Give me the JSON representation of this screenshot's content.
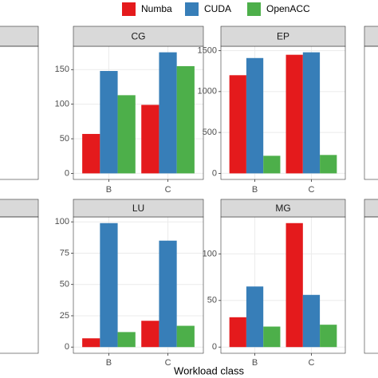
{
  "x_label": "Workload class",
  "chart_data": [
    {
      "type": "bar",
      "title": "CG",
      "categories": [
        "B",
        "C"
      ],
      "series": [
        {
          "name": "Numba",
          "color": "#e41a1c",
          "values": [
            57,
            99
          ]
        },
        {
          "name": "CUDA",
          "color": "#377eb8",
          "values": [
            148,
            175
          ]
        },
        {
          "name": "OpenACC",
          "color": "#4daf4a",
          "values": [
            113,
            155
          ]
        }
      ],
      "ylim": [
        -8.75,
        183.75
      ],
      "yticks": [
        0,
        50,
        100,
        150
      ],
      "grid": true
    },
    {
      "type": "bar",
      "title": "EP",
      "categories": [
        "B",
        "C"
      ],
      "series": [
        {
          "name": "Numba",
          "color": "#e41a1c",
          "values": [
            1200,
            1450
          ]
        },
        {
          "name": "CUDA",
          "color": "#377eb8",
          "values": [
            1410,
            1480
          ]
        },
        {
          "name": "OpenACC",
          "color": "#4daf4a",
          "values": [
            215,
            225
          ]
        }
      ],
      "ylim": [
        -74,
        1554
      ],
      "yticks": [
        0,
        500,
        1000,
        1500
      ],
      "grid": true
    },
    {
      "type": "bar",
      "title": "LU",
      "categories": [
        "B",
        "C"
      ],
      "series": [
        {
          "name": "Numba",
          "color": "#e41a1c",
          "values": [
            7,
            21
          ]
        },
        {
          "name": "CUDA",
          "color": "#377eb8",
          "values": [
            99,
            85
          ]
        },
        {
          "name": "OpenACC",
          "color": "#4daf4a",
          "values": [
            12,
            17
          ]
        }
      ],
      "ylim": [
        -4.95,
        103.95
      ],
      "yticks": [
        0,
        25,
        50,
        75,
        100
      ],
      "grid": true
    },
    {
      "type": "bar",
      "title": "MG",
      "categories": [
        "B",
        "C"
      ],
      "series": [
        {
          "name": "Numba",
          "color": "#e41a1c",
          "values": [
            32,
            133
          ]
        },
        {
          "name": "CUDA",
          "color": "#377eb8",
          "values": [
            65,
            56
          ]
        },
        {
          "name": "OpenACC",
          "color": "#4daf4a",
          "values": [
            22,
            24
          ]
        }
      ],
      "ylim": [
        -6.65,
        139.65
      ],
      "yticks": [
        0,
        50,
        100
      ],
      "grid": true
    }
  ]
}
